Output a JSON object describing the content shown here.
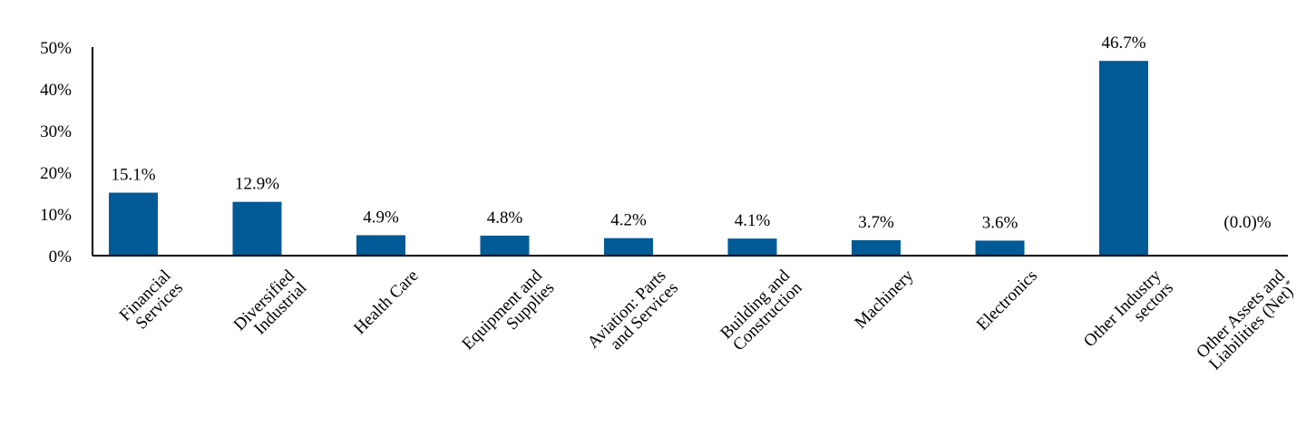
{
  "chart_data": {
    "type": "bar",
    "categories": [
      [
        "Financial",
        "Services"
      ],
      [
        "Diversified",
        "Industrial"
      ],
      [
        "Health Care"
      ],
      [
        "Equipment and",
        "Supplies"
      ],
      [
        "Aviation: Parts",
        "and Services"
      ],
      [
        "Building and",
        "Construction"
      ],
      [
        "Machinery"
      ],
      [
        "Electronics"
      ],
      [
        "Other Industry",
        "sectors"
      ],
      [
        "Other Assets and",
        "Liabilities (Net)"
      ]
    ],
    "values": [
      15.1,
      12.9,
      4.9,
      4.8,
      4.2,
      4.1,
      3.7,
      3.6,
      46.7,
      0.0
    ],
    "data_labels": [
      "15.1%",
      "12.9%",
      "4.9%",
      "4.8%",
      "4.2%",
      "4.1%",
      "3.7%",
      "3.6%",
      "46.7%",
      "(0.0)%"
    ],
    "footnote_marks": [
      "",
      "",
      "",
      "",
      "",
      "",
      "",
      "",
      "",
      "*"
    ],
    "ylim": [
      0,
      50
    ],
    "yticks": [
      0,
      10,
      20,
      30,
      40,
      50
    ],
    "ytick_labels": [
      "0%",
      "10%",
      "20%",
      "30%",
      "40%",
      "50%"
    ],
    "bar_color": "#005a96",
    "grid": false,
    "title": "",
    "xlabel": "",
    "ylabel": ""
  }
}
